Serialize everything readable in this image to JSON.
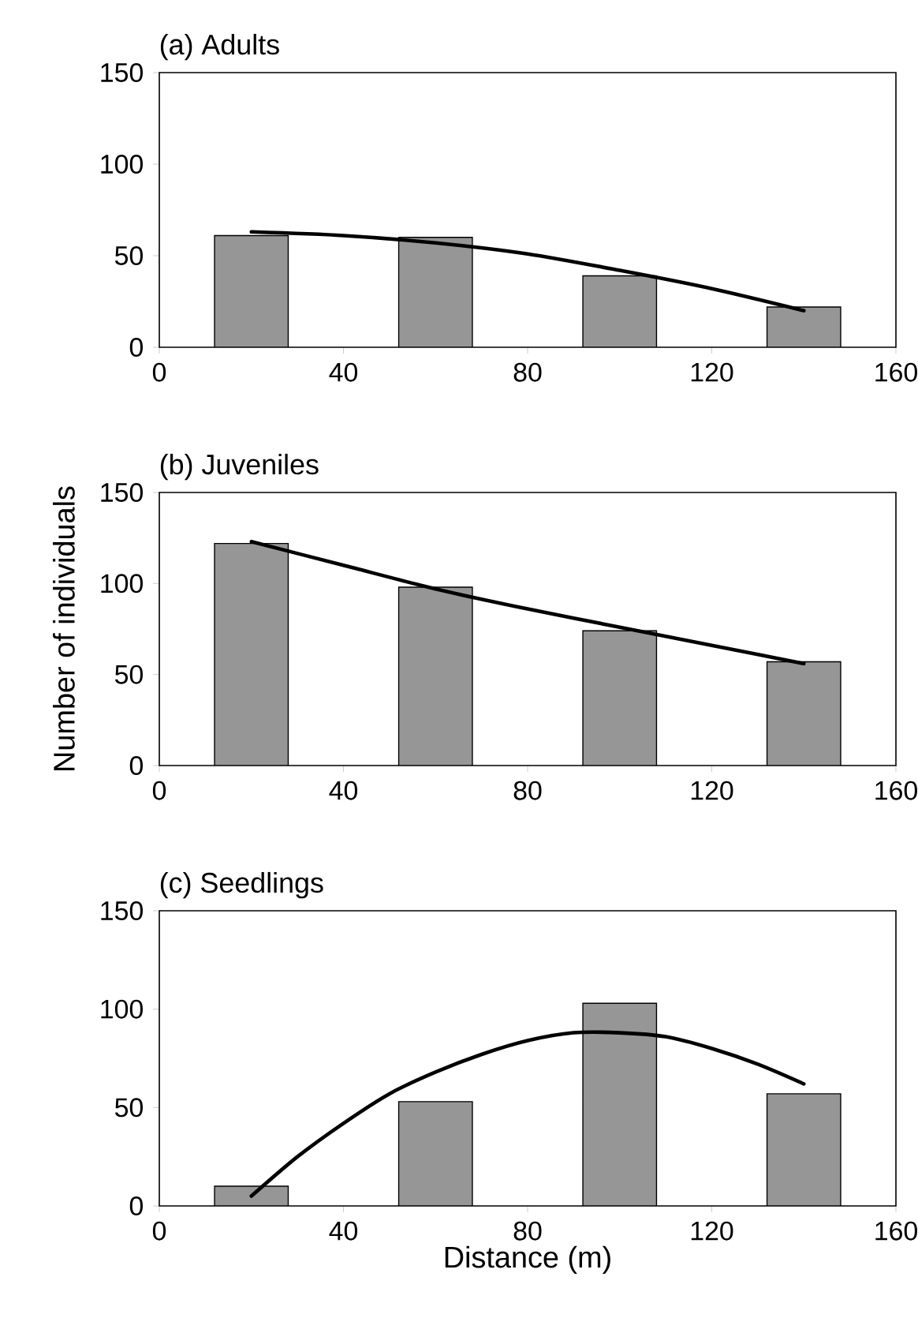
{
  "chart_data": [
    {
      "type": "bar",
      "title": "(a) Adults",
      "xlim": [
        0,
        160
      ],
      "ylim": [
        0,
        150
      ],
      "xticks": [
        0,
        40,
        80,
        120,
        160
      ],
      "yticks": [
        0,
        50,
        100,
        150
      ],
      "series": [
        {
          "x": [
            20,
            60,
            100,
            140
          ],
          "values": [
            61,
            60,
            39,
            22
          ],
          "color": "#969696"
        },
        {
          "type": "line",
          "x": [
            20,
            40,
            60,
            80,
            100,
            120,
            140
          ],
          "values": [
            63,
            61,
            57,
            51,
            42,
            32,
            20
          ],
          "color": "#000000"
        }
      ]
    },
    {
      "type": "bar",
      "title": "(b) Juveniles",
      "ylabel": "Number  of individuals",
      "xlim": [
        0,
        160
      ],
      "ylim": [
        0,
        150
      ],
      "xticks": [
        0,
        40,
        80,
        120,
        160
      ],
      "yticks": [
        0,
        50,
        100,
        150
      ],
      "series": [
        {
          "x": [
            20,
            60,
            100,
            140
          ],
          "values": [
            122,
            98,
            74,
            57
          ],
          "color": "#969696"
        },
        {
          "type": "line",
          "x": [
            20,
            40,
            60,
            80,
            100,
            120,
            140
          ],
          "values": [
            123,
            110,
            97,
            86,
            76,
            66,
            56
          ],
          "color": "#000000"
        }
      ]
    },
    {
      "type": "bar",
      "title": "(c) Seedlings",
      "xlabel": "Distance (m)",
      "xlim": [
        0,
        160
      ],
      "ylim": [
        0,
        150
      ],
      "xticks": [
        0,
        40,
        80,
        120,
        160
      ],
      "yticks": [
        0,
        50,
        100,
        150
      ],
      "series": [
        {
          "x": [
            20,
            60,
            100,
            140
          ],
          "values": [
            10,
            53,
            103,
            57
          ],
          "color": "#969696"
        },
        {
          "type": "line",
          "x": [
            20,
            30,
            40,
            50,
            60,
            70,
            80,
            90,
            100,
            110,
            120,
            130,
            140
          ],
          "values": [
            5,
            25,
            42,
            57,
            68,
            77,
            84,
            88,
            88,
            86,
            80,
            72,
            62
          ],
          "color": "#000000"
        }
      ]
    }
  ]
}
